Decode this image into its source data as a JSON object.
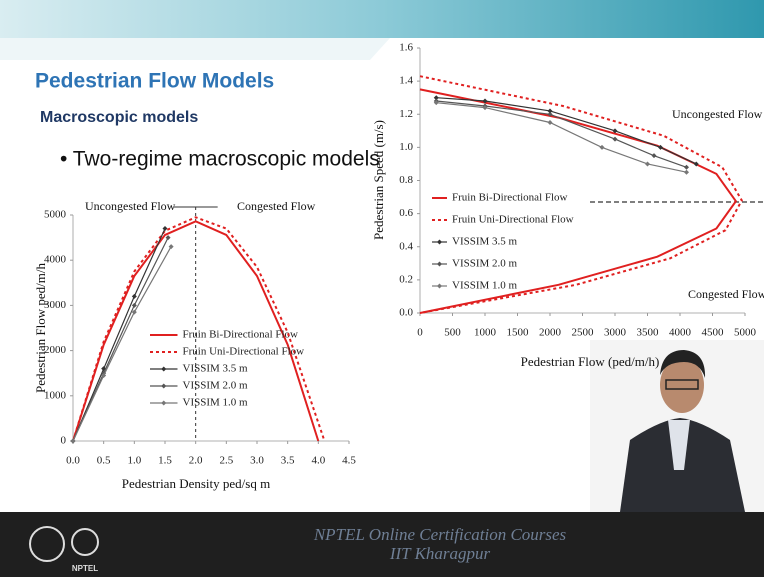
{
  "slide": {
    "title": "Pedestrian Flow Models",
    "subtitle": "Macroscopic models",
    "bullet": "• Two-regime macroscopic models"
  },
  "footer": {
    "line1": "NPTEL Online Certification Courses",
    "line2": "IIT Kharagpur",
    "logo": "NPTEL"
  },
  "chart_data": [
    {
      "type": "line",
      "xlabel": "Pedestrian Density ped/sq m",
      "ylabel": "Pedestrian Flow ped/m/h",
      "annotations": [
        "Uncongested Flow",
        "Congested Flow"
      ],
      "vline": 2,
      "xlim": [
        0,
        4.5
      ],
      "ylim": [
        0,
        5000
      ],
      "xticks": [
        {
          "value": 0,
          "label": "0.0"
        },
        0.5,
        {
          "value": 1,
          "label": "1.0"
        },
        1.5,
        {
          "value": 2,
          "label": "2.0"
        },
        2.5,
        {
          "value": 3,
          "label": "3.0"
        },
        3.5,
        {
          "value": 4,
          "label": "4.0"
        },
        4.5
      ],
      "yticks": [
        0,
        1000,
        2000,
        3000,
        4000,
        5000
      ],
      "series": [
        {
          "name": "Fruin Bi-Directional Flow",
          "color": "#e02020",
          "dash": "solid",
          "marker": "none",
          "x": [
            0,
            0.5,
            1,
            1.5,
            2,
            2.5,
            3,
            3.5,
            4
          ],
          "values": [
            0,
            2130,
            3650,
            4560,
            4860,
            4560,
            3650,
            2130,
            0
          ]
        },
        {
          "name": "Fruin Uni-Directional Flow",
          "color": "#e02020",
          "dash": "dotted",
          "marker": "none",
          "x": [
            0,
            0.5,
            1,
            1.5,
            2,
            2.5,
            3,
            3.5,
            4.1
          ],
          "values": [
            0,
            2200,
            3750,
            4650,
            4950,
            4700,
            3850,
            2400,
            0
          ]
        },
        {
          "name": "VISSIM 3.5 m",
          "color": "#333333",
          "dash": "solid",
          "marker": "diamond",
          "x": [
            0,
            0.5,
            1,
            1.5
          ],
          "values": [
            0,
            1600,
            3200,
            4700
          ]
        },
        {
          "name": "VISSIM 2.0 m",
          "color": "#555555",
          "dash": "solid",
          "marker": "diamond",
          "x": [
            0,
            0.5,
            1,
            1.55
          ],
          "values": [
            0,
            1500,
            3000,
            4500
          ]
        },
        {
          "name": "VISSIM 1.0 m",
          "color": "#777777",
          "dash": "solid",
          "marker": "diamond",
          "x": [
            0,
            0.5,
            1,
            1.6
          ],
          "values": [
            0,
            1450,
            2850,
            4300
          ]
        }
      ]
    },
    {
      "type": "line",
      "xlabel": "Pedestrian Flow (ped/m/h)",
      "ylabel": "Pedestrian Speed (m/s)",
      "annotations": [
        "Uncongested Flow",
        "Congested Flow"
      ],
      "hline": 0.67,
      "xlim": [
        0,
        5000
      ],
      "ylim": [
        0,
        1.6
      ],
      "xticks": [
        0,
        500,
        1000,
        1500,
        2000,
        2500,
        3000,
        3500,
        4000,
        4500,
        5000
      ],
      "yticks": [
        {
          "value": 0,
          "label": "0.0"
        },
        0.2,
        0.4,
        0.6,
        0.8,
        {
          "value": 1,
          "label": "1.0"
        },
        1.2,
        1.4,
        1.6
      ],
      "series": [
        {
          "name": "Fruin Bi-Directional Flow",
          "color": "#e02020",
          "dash": "solid",
          "marker": "none",
          "x": [
            0,
            2130,
            3650,
            4560,
            4860,
            4560,
            3650,
            2130,
            0
          ],
          "values": [
            1.35,
            1.18,
            1.01,
            0.84,
            0.675,
            0.51,
            0.34,
            0.17,
            0
          ]
        },
        {
          "name": "Fruin Uni-Directional Flow",
          "color": "#e02020",
          "dash": "dotted",
          "marker": "none",
          "x": [
            0,
            2200,
            3750,
            4650,
            4950,
            4700,
            3850,
            2400,
            0
          ],
          "values": [
            1.43,
            1.25,
            1.07,
            0.88,
            0.68,
            0.5,
            0.33,
            0.17,
            0
          ]
        },
        {
          "name": "VISSIM 3.5 m",
          "color": "#333333",
          "dash": "solid",
          "marker": "diamond",
          "x": [
            250,
            1000,
            2000,
            3000,
            3700,
            4250
          ],
          "values": [
            1.3,
            1.28,
            1.22,
            1.1,
            1.0,
            0.9
          ]
        },
        {
          "name": "VISSIM 2.0 m",
          "color": "#555555",
          "dash": "solid",
          "marker": "diamond",
          "x": [
            250,
            1000,
            2000,
            3000,
            3600,
            4100
          ],
          "values": [
            1.28,
            1.25,
            1.2,
            1.05,
            0.95,
            0.88
          ]
        },
        {
          "name": "VISSIM 1.0 m",
          "color": "#777777",
          "dash": "solid",
          "marker": "diamond",
          "x": [
            250,
            1000,
            2000,
            2800,
            3500,
            4100
          ],
          "values": [
            1.27,
            1.24,
            1.15,
            1.0,
            0.9,
            0.85
          ]
        }
      ]
    }
  ]
}
